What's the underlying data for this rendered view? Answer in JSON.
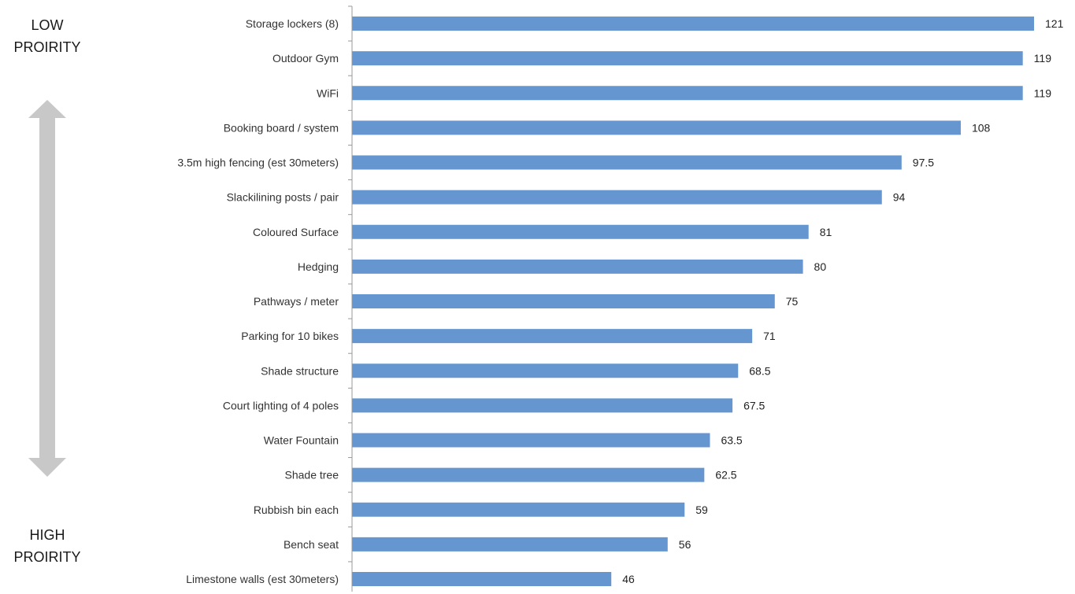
{
  "side_labels": {
    "low_line1": "LOW",
    "low_line2": "PROIRITY",
    "high_line1": "HIGH",
    "high_line2": "PROIRITY"
  },
  "colors": {
    "bar": "#6596cf",
    "arrow": "#c8c8c8",
    "axis": "#999999"
  },
  "chart_data": {
    "type": "bar",
    "orientation": "horizontal",
    "title": "",
    "xlabel": "",
    "ylabel": "",
    "xlim": [
      0,
      121
    ],
    "grid": false,
    "categories": [
      "Storage lockers (8)",
      "Outdoor Gym",
      "WiFi",
      "Booking board / system",
      "3.5m high fencing (est 30meters)",
      "Slackilining posts / pair",
      "Coloured Surface",
      "Hedging",
      "Pathways / meter",
      "Parking for 10 bikes",
      "Shade structure",
      "Court lighting of 4 poles",
      "Water Fountain",
      "Shade tree",
      "Rubbish bin each",
      "Bench seat",
      "Limestone walls (est 30meters)"
    ],
    "values": [
      121,
      119,
      119,
      108,
      97.5,
      94,
      81,
      80,
      75,
      71,
      68.5,
      67.5,
      63.5,
      62.5,
      59,
      56,
      46
    ],
    "value_labels": [
      "121",
      "119",
      "119",
      "108",
      "97.5",
      "94",
      "81",
      "80",
      "75",
      "71",
      "68.5",
      "67.5",
      "63.5",
      "62.5",
      "59",
      "56",
      "46"
    ]
  }
}
